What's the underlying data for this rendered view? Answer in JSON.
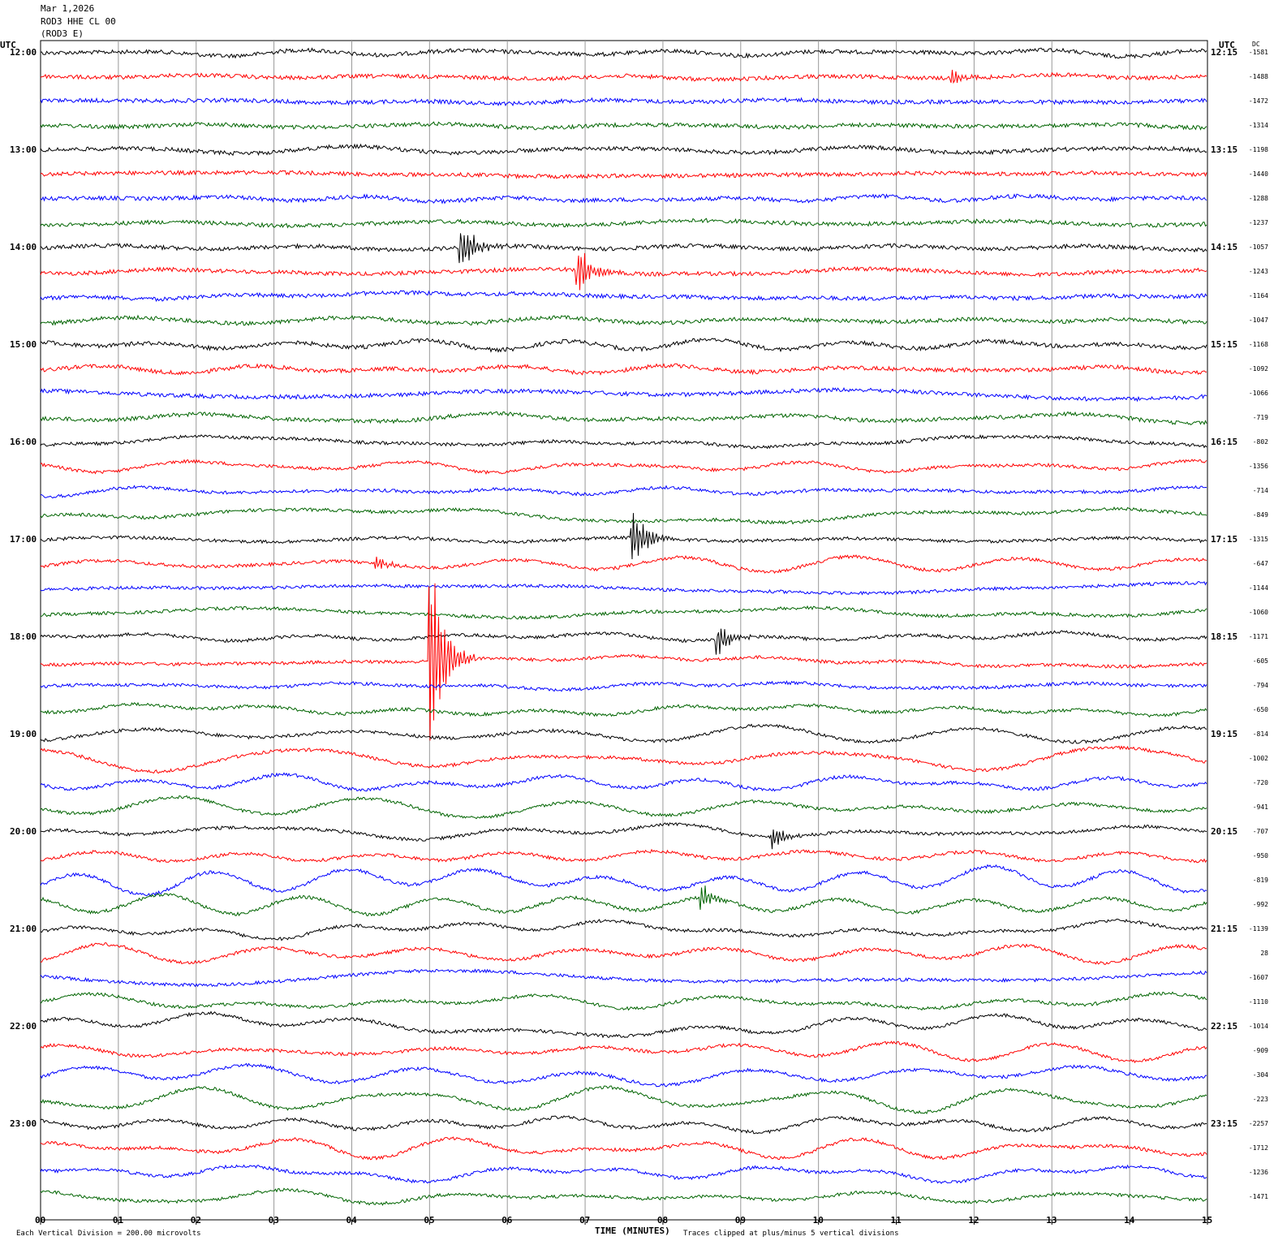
{
  "header": {
    "date": "Mar 1,2026",
    "station": "ROD3 HHE CL 00",
    "sub": "(ROD3 E)"
  },
  "axes": {
    "left_title": "UTC",
    "right_title": "UTC",
    "dc_title": "DC",
    "left_hours": [
      "12:00",
      "13:00",
      "14:00",
      "15:00",
      "16:00",
      "17:00",
      "18:00",
      "19:00",
      "20:00",
      "21:00",
      "22:00",
      "23:00"
    ],
    "right_hours": [
      "12:15",
      "13:15",
      "14:15",
      "15:15",
      "16:15",
      "17:15",
      "18:15",
      "19:15",
      "20:15",
      "21:15",
      "22:15",
      "23:15"
    ],
    "x_ticks": [
      "00",
      "01",
      "02",
      "03",
      "04",
      "05",
      "06",
      "07",
      "08",
      "09",
      "10",
      "11",
      "12",
      "13",
      "14",
      "15"
    ],
    "x_label": "TIME (MINUTES)"
  },
  "dc_offsets": [
    "-1581",
    "-1488",
    "-1472",
    "-1314",
    "-1198",
    "-1440",
    "-1288",
    "-1237",
    "-1057",
    "-1243",
    "-1164",
    "-1047",
    "-1168",
    "-1092",
    "-1066",
    "-719",
    "-802",
    "-1356",
    "-714",
    "-849",
    "-1315",
    "-647",
    "-1144",
    "-1060",
    "-1171",
    "-605",
    "-794",
    "-650",
    "-814",
    "-1002",
    "-720",
    "-941",
    "-707",
    "-950",
    "-819",
    "-992",
    "-1139",
    "28",
    "-1607",
    "-1110",
    "-1014",
    "-909",
    "-304",
    "-223",
    "-2257",
    "-1712",
    "-1236",
    "-1471"
  ],
  "footer": {
    "scale": "Each Vertical Division =  200.00 microvolts",
    "clip": "Traces clipped at plus/minus 5 vertical divisions"
  },
  "colors": {
    "cycle": [
      "#000000",
      "#ff0000",
      "#0000ff",
      "#006400"
    ],
    "grid": "#999999"
  },
  "chart_data": {
    "type": "line",
    "title": "",
    "xlabel": "TIME (MINUTES)",
    "xlim": [
      0,
      15
    ],
    "traces_per_hour": 4,
    "minutes_per_trace": 15,
    "events": [
      {
        "trace": 8,
        "minute": 5.4,
        "amplitude_div": 1.2
      },
      {
        "trace": 9,
        "minute": 6.9,
        "amplitude_div": 1.3
      },
      {
        "trace": 20,
        "minute": 7.6,
        "amplitude_div": 1.5
      },
      {
        "trace": 21,
        "minute": 4.3,
        "amplitude_div": 0.4
      },
      {
        "trace": 25,
        "minute": 5.0,
        "amplitude_div": 5.0
      },
      {
        "trace": 24,
        "minute": 8.7,
        "amplitude_div": 0.8
      },
      {
        "trace": 32,
        "minute": 9.4,
        "amplitude_div": 0.6
      },
      {
        "trace": 35,
        "minute": 8.5,
        "amplitude_div": 0.6
      },
      {
        "trace": 1,
        "minute": 11.7,
        "amplitude_div": 0.4
      }
    ]
  }
}
